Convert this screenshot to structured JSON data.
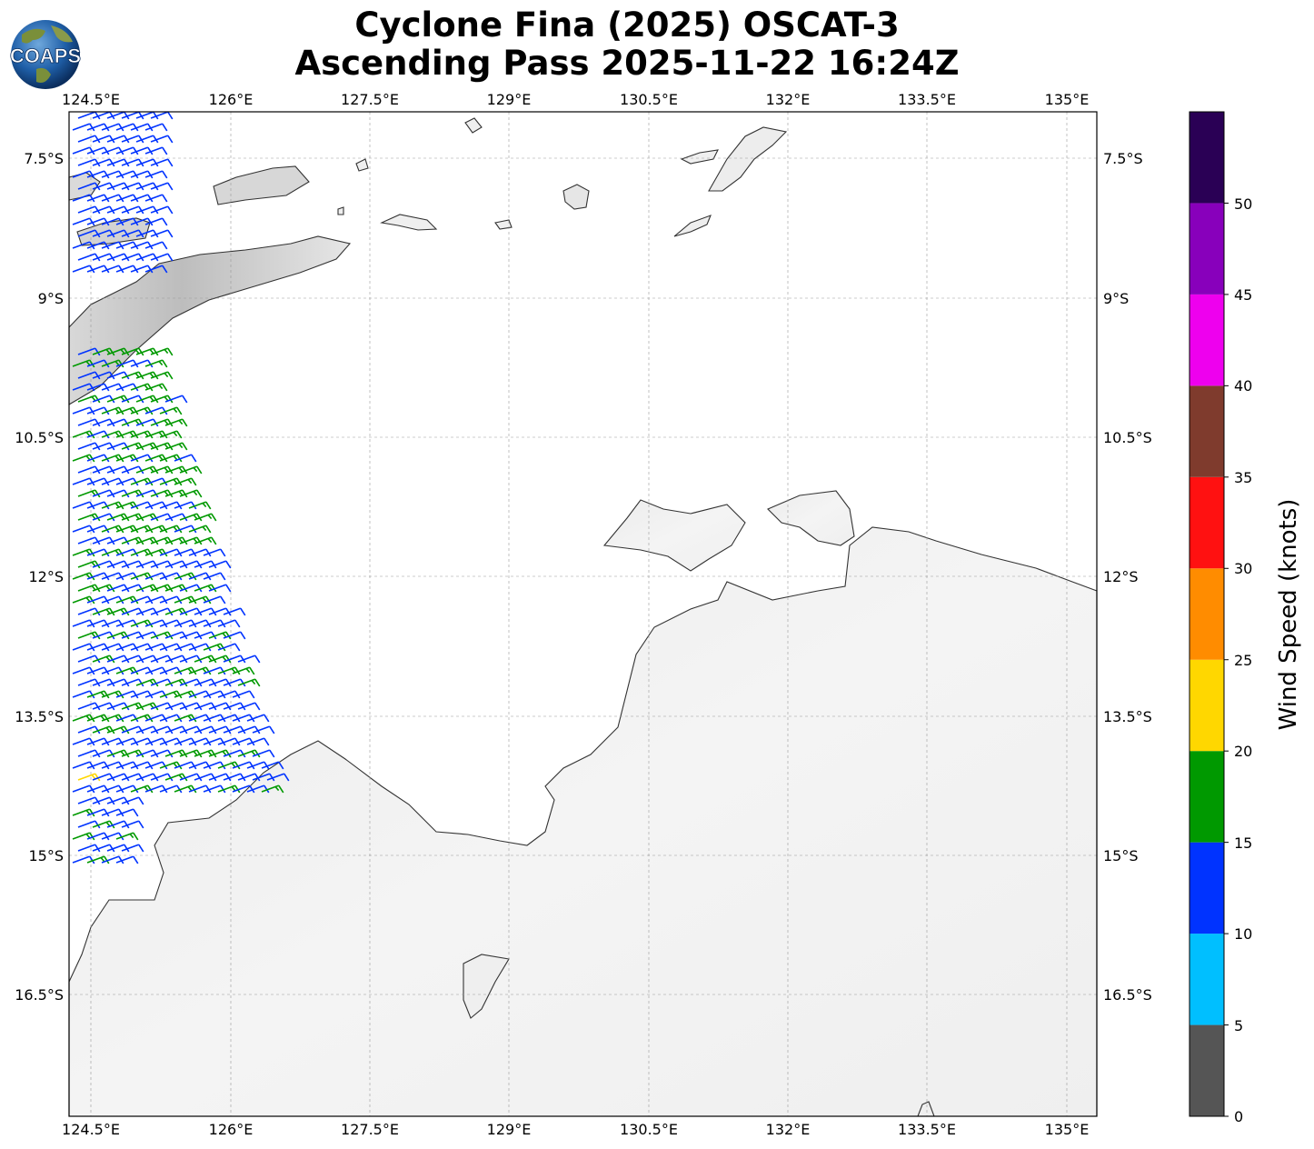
{
  "title_line1": "Cyclone Fina (2025) OSCAT-3",
  "title_line2": "Ascending Pass 2025-11-22 16:24Z",
  "logo_text": "COAPS",
  "lon_ticks": [
    "124.5°E",
    "126°E",
    "127.5°E",
    "129°E",
    "130.5°E",
    "132°E",
    "133.5°E",
    "135°E"
  ],
  "lat_ticks": [
    "7.5°S",
    "9°S",
    "10.5°S",
    "12°S",
    "13.5°S",
    "15°S",
    "16.5°S"
  ],
  "colorbar": {
    "label": "Wind Speed (knots)",
    "ticks": [
      "0",
      "5",
      "10",
      "15",
      "20",
      "25",
      "30",
      "35",
      "40",
      "45",
      "50"
    ],
    "bins": [
      {
        "min": 0,
        "max": 5,
        "color": "#555555"
      },
      {
        "min": 5,
        "max": 10,
        "color": "#00bfff"
      },
      {
        "min": 10,
        "max": 15,
        "color": "#0033ff"
      },
      {
        "min": 15,
        "max": 20,
        "color": "#009900"
      },
      {
        "min": 20,
        "max": 25,
        "color": "#ffd700"
      },
      {
        "min": 25,
        "max": 30,
        "color": "#ff8c00"
      },
      {
        "min": 30,
        "max": 35,
        "color": "#ff1111"
      },
      {
        "min": 35,
        "max": 40,
        "color": "#7f3b2d"
      },
      {
        "min": 40,
        "max": 45,
        "color": "#ee00ee"
      },
      {
        "min": 45,
        "max": 50,
        "color": "#8800bb"
      },
      {
        "min": 50,
        "max": 55,
        "color": "#2a0055"
      }
    ]
  },
  "map": {
    "extent_lon": [
      124.25,
      135.3
    ],
    "extent_lat": [
      -7.0,
      -17.8
    ],
    "gridlines": true,
    "coastline_color": "#333333",
    "land_shading": "grayscale terrain"
  },
  "wind_barbs": {
    "swath_lon_west": 124.25,
    "swath_lon_east_north": 125.8,
    "swath_lon_east_south": 126.6,
    "lat_range": [
      -7.0,
      -15.2
    ],
    "dominant_speed_knots": [
      10,
      20
    ],
    "direction": "east-southeasterly"
  }
}
